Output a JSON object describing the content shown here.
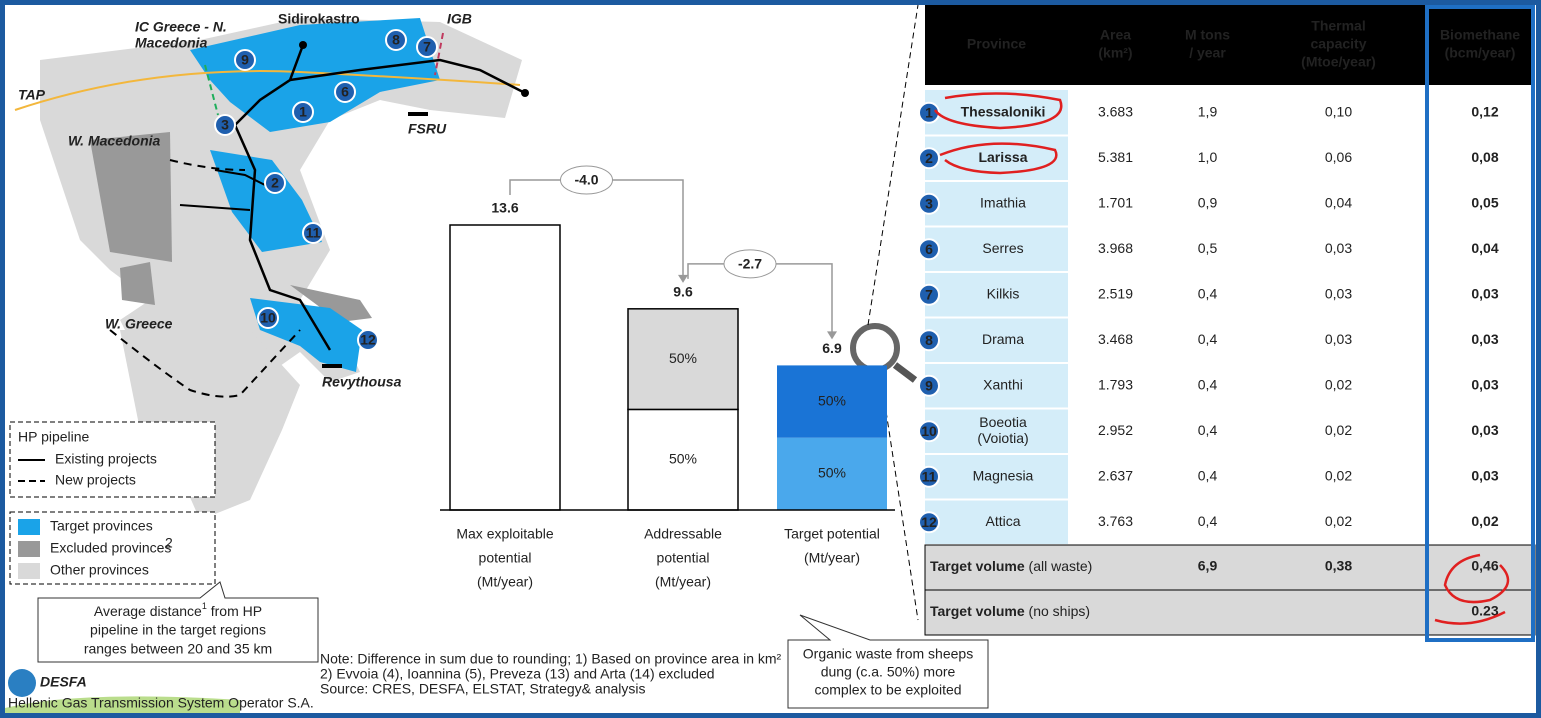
{
  "map": {
    "labels": {
      "ic": [
        "IC Greece - N.",
        "Macedonia"
      ],
      "sidirokastro": "Sidirokastro",
      "igb": "IGB",
      "tap": "TAP",
      "wmacedonia": "W. Macedonia",
      "fsru": "FSRU",
      "wgreece": "W. Greece",
      "revythousa": "Revythousa"
    },
    "badges": [
      "9",
      "8",
      "7",
      "1",
      "6",
      "3",
      "2",
      "11",
      "10",
      "12"
    ]
  },
  "legend": {
    "pipeline_title": "HP pipeline",
    "existing": "Existing projects",
    "new": "New projects",
    "target": "Target provinces",
    "excluded": "Excluded provinces",
    "excluded_sup": "2",
    "other": "Other provinces"
  },
  "callout_distance": {
    "line1": "Average distance",
    "sup": "1",
    "line1_rest": " from HP",
    "line2": "pipeline in the target regions",
    "line3": "ranges between 20 and 35 km"
  },
  "waterfall": {
    "categories": [
      [
        "Max exploitable",
        "potential",
        "(Mt/year)"
      ],
      [
        "Addressable",
        "potential",
        "(Mt/year)"
      ],
      [
        "Target potential",
        "(Mt/year)"
      ]
    ],
    "values": [
      13.6,
      9.6,
      6.9
    ],
    "deltas": [
      {
        "value": -4.0,
        "label": "-4.0"
      },
      {
        "value": -2.7,
        "label": "-2.7"
      }
    ],
    "segments": [
      [],
      [
        {
          "value": 50,
          "label": "50%"
        },
        {
          "value": 50,
          "label": "50%"
        }
      ],
      [
        {
          "value": 50,
          "label": "50%"
        },
        {
          "value": 50,
          "label": "50%"
        }
      ]
    ]
  },
  "notes": [
    "Note: Difference in sum due to rounding; 1) Based on province area in km²",
    "2) Evvoia (4), Ioannina (5), Preveza (13) and Arta (14) excluded",
    "Source: CRES, DESFA, ELSTAT, Strategy& analysis"
  ],
  "callout_waste": [
    "Organic waste from sheeps",
    "dung (c.a. 50%) more",
    "complex to be exploited"
  ],
  "logo": {
    "name": "DESFA",
    "tagline": "Hellenic Gas Transmission System Operator S.A."
  },
  "table": {
    "header": [
      [
        "Province"
      ],
      [
        "Area",
        "(km²)"
      ],
      [
        "M tons",
        "/ year"
      ],
      [
        "Thermal",
        "capacity",
        "(Mtoe/year)"
      ],
      [
        "Biomethane",
        "(bcm/year)"
      ]
    ],
    "rows": [
      [
        "1",
        [
          "Thessaloniki"
        ],
        "3.683",
        "1,9",
        "0,10",
        "0,12"
      ],
      [
        "2",
        [
          "Larissa"
        ],
        "5.381",
        "1,0",
        "0,06",
        "0,08"
      ],
      [
        "3",
        [
          "Imathia"
        ],
        "1.701",
        "0,9",
        "0,04",
        "0,05"
      ],
      [
        "6",
        [
          "Serres"
        ],
        "3.968",
        "0,5",
        "0,03",
        "0,04"
      ],
      [
        "7",
        [
          "Kilkis"
        ],
        "2.519",
        "0,4",
        "0,03",
        "0,03"
      ],
      [
        "8",
        [
          "Drama"
        ],
        "3.468",
        "0,4",
        "0,03",
        "0,03"
      ],
      [
        "9",
        [
          "Xanthi"
        ],
        "1.793",
        "0,4",
        "0,02",
        "0,03"
      ],
      [
        "10",
        [
          "Boeotia",
          "(Voiotia)"
        ],
        "2.952",
        "0,4",
        "0,02",
        "0,03"
      ],
      [
        "11",
        [
          "Magnesia"
        ],
        "2.637",
        "0,4",
        "0,02",
        "0,03"
      ],
      [
        "12",
        [
          "Attica"
        ],
        "3.763",
        "0,4",
        "0,02",
        "0,02"
      ]
    ],
    "footer": [
      {
        "label": "Target volume",
        "qualifier": " (all waste)",
        "mtons": "6,9",
        "thermal": "0,38",
        "biomethane": "0,46"
      },
      {
        "label": "Target volume",
        "qualifier": " (no ships)",
        "biomethane": "0.23"
      }
    ]
  }
}
